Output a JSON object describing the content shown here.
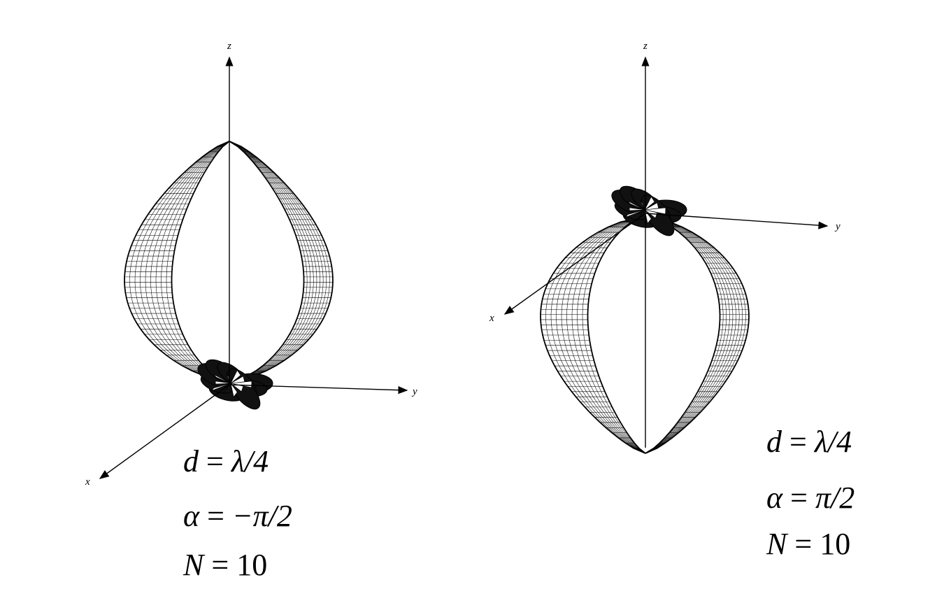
{
  "figures": [
    {
      "axes": {
        "x": "x",
        "y": "y",
        "z": "z"
      },
      "params": {
        "d": {
          "lhs": "d",
          "rhs": "λ/4"
        },
        "alpha": {
          "lhs": "α",
          "rhs": "−π/2"
        },
        "n": {
          "lhs": "N",
          "rhs": "10"
        }
      }
    },
    {
      "axes": {
        "x": "x",
        "y": "y",
        "z": "z"
      },
      "params": {
        "d": {
          "lhs": "d",
          "rhs": "λ/4"
        },
        "alpha": {
          "lhs": "α",
          "rhs": "π/2"
        },
        "n": {
          "lhs": "N",
          "rhs": "10"
        }
      }
    }
  ]
}
